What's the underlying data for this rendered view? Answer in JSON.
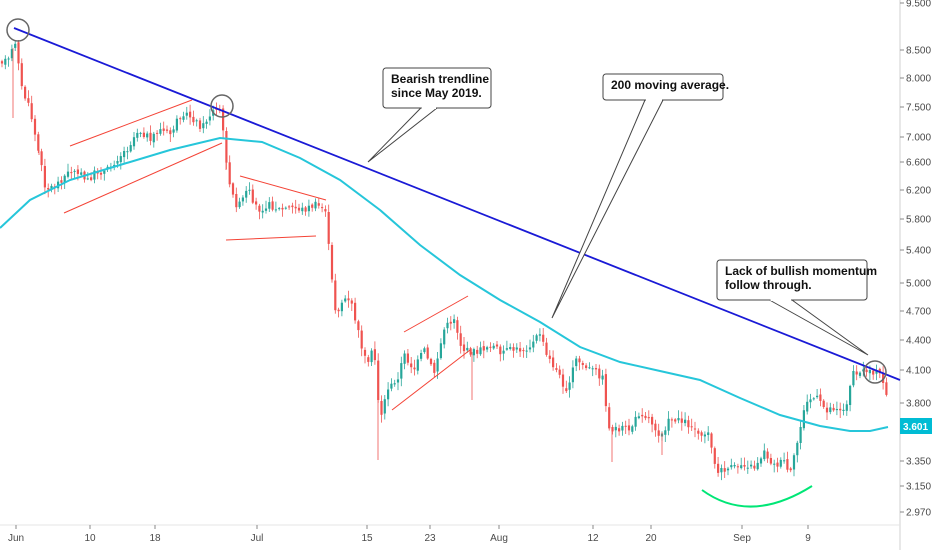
{
  "chart_data": {
    "type": "candlestick",
    "title": "",
    "xlabel": "",
    "ylabel": "",
    "ylim": [
      2.85,
      9.5
    ],
    "y_scale": "log",
    "y_ticks": [
      "9.500",
      "8.500",
      "8.000",
      "7.500",
      "7.000",
      "6.600",
      "6.200",
      "5.800",
      "5.400",
      "5.000",
      "4.700",
      "4.400",
      "4.100",
      "3.800",
      "3.350",
      "3.150",
      "2.970"
    ],
    "x_ticks": [
      "Jun",
      "10",
      "18",
      "Jul",
      "15",
      "23",
      "Aug",
      "12",
      "20",
      "Sep",
      "9"
    ],
    "last_price_label": "3.601",
    "colors": {
      "up": "#26a69a",
      "down": "#ef5350",
      "trendline": "#1a1ad6",
      "ma200": "#26c6da",
      "patterns": "#f44336",
      "arc": "#00e676",
      "price_tag": "#00bcd4"
    },
    "series": [
      {
        "name": "200 moving average.",
        "kind": "line"
      },
      {
        "name": "Bearish trendline since May 2019.",
        "kind": "trendline"
      }
    ],
    "annotations": [
      {
        "id": "trendline-note",
        "lines": [
          "Bearish trendline",
          "since May 2019."
        ]
      },
      {
        "id": "ma-note",
        "lines": [
          "200 moving average."
        ]
      },
      {
        "id": "momentum-note",
        "lines": [
          "Lack of bullish momentum",
          "follow through."
        ]
      }
    ]
  }
}
